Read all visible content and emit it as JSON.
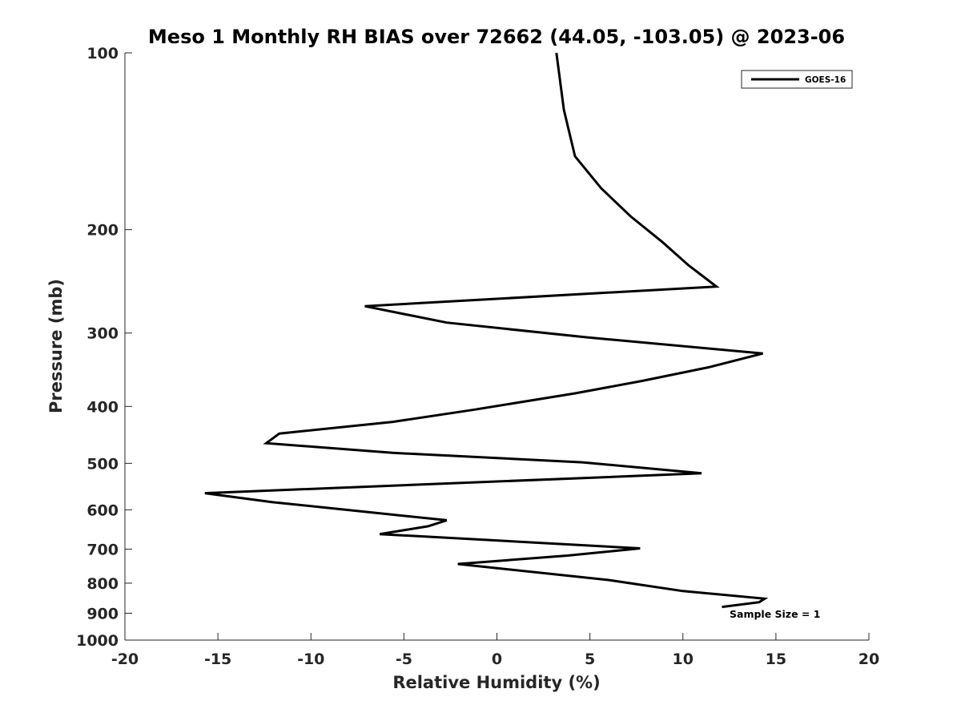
{
  "chart_data": {
    "type": "line",
    "title": "Meso 1 Monthly RH BIAS over 72662 (44.05, -103.05) @ 2023-06",
    "xlabel": "Relative Humidity (%)",
    "ylabel": "Pressure (mb)",
    "xlim": [
      -20,
      20
    ],
    "ylim": [
      100,
      1000
    ],
    "y_scale": "log",
    "y_reversed": true,
    "x_ticks": [
      -20,
      -15,
      -10,
      -5,
      0,
      5,
      10,
      15,
      20
    ],
    "y_ticks": [
      100,
      200,
      300,
      400,
      500,
      600,
      700,
      800,
      900,
      1000
    ],
    "grid": false,
    "legend": {
      "position": "top-right",
      "entries": [
        "GOES-16"
      ]
    },
    "annotation": "Sample Size = 1",
    "series": [
      {
        "name": "GOES-16",
        "color": "#000000",
        "points": [
          {
            "x": 3.2,
            "y": 100
          },
          {
            "x": 3.6,
            "y": 125
          },
          {
            "x": 4.2,
            "y": 150
          },
          {
            "x": 5.6,
            "y": 170
          },
          {
            "x": 7.2,
            "y": 190
          },
          {
            "x": 8.9,
            "y": 210
          },
          {
            "x": 10.3,
            "y": 230
          },
          {
            "x": 11.8,
            "y": 250
          },
          {
            "x": -7.1,
            "y": 270
          },
          {
            "x": -2.7,
            "y": 288
          },
          {
            "x": 4.8,
            "y": 305
          },
          {
            "x": 14.3,
            "y": 325
          },
          {
            "x": 11.4,
            "y": 343
          },
          {
            "x": 7.8,
            "y": 362
          },
          {
            "x": 4.2,
            "y": 380
          },
          {
            "x": -1.2,
            "y": 405
          },
          {
            "x": -5.6,
            "y": 425
          },
          {
            "x": -11.7,
            "y": 445
          },
          {
            "x": -12.4,
            "y": 462
          },
          {
            "x": -5.6,
            "y": 480
          },
          {
            "x": 4.6,
            "y": 498
          },
          {
            "x": 11.0,
            "y": 520
          },
          {
            "x": -15.7,
            "y": 562
          },
          {
            "x": -12.1,
            "y": 582
          },
          {
            "x": -2.7,
            "y": 625
          },
          {
            "x": -3.7,
            "y": 640
          },
          {
            "x": -6.3,
            "y": 660
          },
          {
            "x": 7.7,
            "y": 698
          },
          {
            "x": 3.8,
            "y": 718
          },
          {
            "x": -2.1,
            "y": 742
          },
          {
            "x": 6.0,
            "y": 790
          },
          {
            "x": 10.0,
            "y": 825
          },
          {
            "x": 14.4,
            "y": 850
          },
          {
            "x": 14.1,
            "y": 862
          },
          {
            "x": 12.1,
            "y": 878
          }
        ]
      }
    ]
  }
}
